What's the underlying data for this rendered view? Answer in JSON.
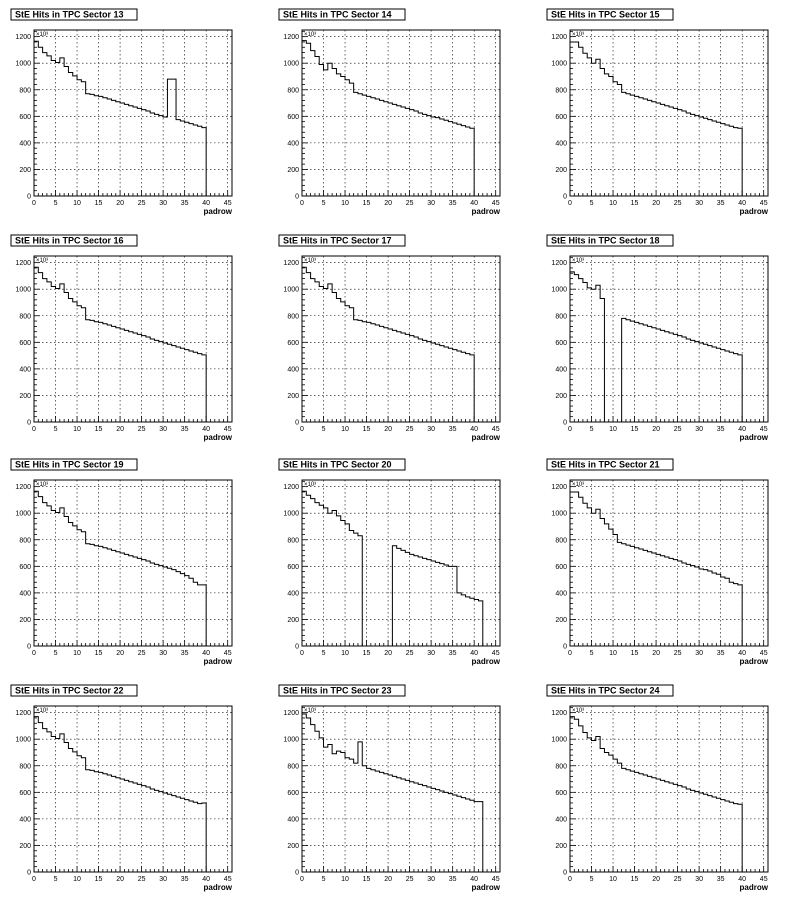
{
  "chart_data": [
    {
      "type": "histogram",
      "title": "StE Hits in TPC Sector 13",
      "xlabel": "padrow",
      "ylabel": "",
      "y_exponent": "×10³",
      "xlim": [
        0,
        46
      ],
      "ylim": [
        0,
        1250
      ],
      "x_ticks": [
        0,
        5,
        10,
        15,
        20,
        25,
        30,
        35,
        40,
        45
      ],
      "y_ticks": [
        0,
        200,
        400,
        600,
        800,
        1000,
        1200
      ],
      "grid": true,
      "values": [
        1165,
        1120,
        1080,
        1055,
        1020,
        1005,
        1040,
        975,
        930,
        905,
        875,
        860,
        770,
        765,
        755,
        750,
        740,
        730,
        720,
        710,
        700,
        690,
        680,
        670,
        660,
        650,
        640,
        625,
        615,
        605,
        595,
        880,
        880,
        575,
        565,
        555,
        545,
        535,
        525,
        515,
        0,
        0,
        0,
        0,
        0,
        0
      ]
    },
    {
      "type": "histogram",
      "title": "StE Hits in TPC Sector 14",
      "xlabel": "padrow",
      "ylabel": "",
      "y_exponent": "×10³",
      "xlim": [
        0,
        46
      ],
      "ylim": [
        0,
        1250
      ],
      "x_ticks": [
        0,
        5,
        10,
        15,
        20,
        25,
        30,
        35,
        40,
        45
      ],
      "y_ticks": [
        0,
        200,
        400,
        600,
        800,
        1000,
        1200
      ],
      "grid": true,
      "values": [
        1170,
        1150,
        1095,
        1050,
        990,
        950,
        1000,
        960,
        920,
        900,
        875,
        850,
        780,
        770,
        760,
        750,
        740,
        730,
        720,
        710,
        700,
        690,
        680,
        670,
        660,
        650,
        640,
        625,
        615,
        605,
        595,
        590,
        580,
        570,
        560,
        550,
        540,
        530,
        520,
        510,
        0,
        0,
        0,
        0,
        0,
        0
      ]
    },
    {
      "type": "histogram",
      "title": "StE Hits in TPC Sector 15",
      "xlabel": "padrow",
      "ylabel": "",
      "y_exponent": "×10³",
      "xlim": [
        0,
        46
      ],
      "ylim": [
        0,
        1250
      ],
      "x_ticks": [
        0,
        5,
        10,
        15,
        20,
        25,
        30,
        35,
        40,
        45
      ],
      "y_ticks": [
        0,
        200,
        400,
        600,
        800,
        1000,
        1200
      ],
      "grid": true,
      "values": [
        1160,
        1160,
        1120,
        1075,
        1040,
        1000,
        1030,
        960,
        920,
        900,
        860,
        840,
        780,
        770,
        760,
        750,
        740,
        730,
        720,
        710,
        700,
        690,
        680,
        670,
        660,
        650,
        640,
        625,
        615,
        605,
        595,
        585,
        575,
        565,
        555,
        545,
        535,
        525,
        515,
        510,
        0,
        0,
        0,
        0,
        0,
        0
      ]
    },
    {
      "type": "histogram",
      "title": "StE Hits in TPC Sector 16",
      "xlabel": "padrow",
      "ylabel": "",
      "y_exponent": "×10³",
      "xlim": [
        0,
        46
      ],
      "ylim": [
        0,
        1250
      ],
      "x_ticks": [
        0,
        5,
        10,
        15,
        20,
        25,
        30,
        35,
        40,
        45
      ],
      "y_ticks": [
        0,
        200,
        400,
        600,
        800,
        1000,
        1200
      ],
      "grid": true,
      "values": [
        1165,
        1125,
        1080,
        1055,
        1020,
        1005,
        1040,
        975,
        930,
        905,
        875,
        860,
        770,
        765,
        755,
        750,
        740,
        730,
        720,
        710,
        700,
        690,
        680,
        670,
        660,
        650,
        640,
        625,
        615,
        605,
        595,
        585,
        575,
        565,
        555,
        545,
        535,
        525,
        515,
        505,
        0,
        0,
        0,
        0,
        0,
        0
      ]
    },
    {
      "type": "histogram",
      "title": "StE Hits in TPC Sector 17",
      "xlabel": "padrow",
      "ylabel": "",
      "y_exponent": "×10³",
      "xlim": [
        0,
        46
      ],
      "ylim": [
        0,
        1250
      ],
      "x_ticks": [
        0,
        5,
        10,
        15,
        20,
        25,
        30,
        35,
        40,
        45
      ],
      "y_ticks": [
        0,
        200,
        400,
        600,
        800,
        1000,
        1200
      ],
      "grid": true,
      "values": [
        1165,
        1125,
        1080,
        1055,
        1020,
        1005,
        1040,
        975,
        930,
        905,
        875,
        860,
        770,
        765,
        755,
        750,
        740,
        730,
        720,
        710,
        700,
        690,
        680,
        670,
        660,
        650,
        640,
        625,
        615,
        605,
        595,
        585,
        575,
        565,
        555,
        545,
        535,
        525,
        515,
        505,
        0,
        0,
        0,
        0,
        0,
        0
      ]
    },
    {
      "type": "histogram",
      "title": "StE Hits in TPC Sector 18",
      "xlabel": "padrow",
      "ylabel": "",
      "y_exponent": "×10³",
      "xlim": [
        0,
        46
      ],
      "ylim": [
        0,
        1250
      ],
      "x_ticks": [
        0,
        5,
        10,
        15,
        20,
        25,
        30,
        35,
        40,
        45
      ],
      "y_ticks": [
        0,
        200,
        400,
        600,
        800,
        1000,
        1200
      ],
      "grid": true,
      "values": [
        1130,
        1110,
        1080,
        1050,
        1010,
        1000,
        1030,
        930,
        0,
        0,
        0,
        0,
        780,
        770,
        760,
        750,
        740,
        730,
        720,
        710,
        700,
        690,
        680,
        670,
        660,
        650,
        640,
        625,
        615,
        605,
        595,
        585,
        575,
        565,
        555,
        545,
        535,
        525,
        515,
        505,
        0,
        0,
        0,
        0,
        0,
        0
      ]
    },
    {
      "type": "histogram",
      "title": "StE Hits in TPC Sector 19",
      "xlabel": "padrow",
      "ylabel": "",
      "y_exponent": "×10³",
      "xlim": [
        0,
        46
      ],
      "ylim": [
        0,
        1250
      ],
      "x_ticks": [
        0,
        5,
        10,
        15,
        20,
        25,
        30,
        35,
        40,
        45
      ],
      "y_ticks": [
        0,
        200,
        400,
        600,
        800,
        1000,
        1200
      ],
      "grid": true,
      "values": [
        1165,
        1125,
        1080,
        1055,
        1020,
        1005,
        1040,
        975,
        930,
        905,
        875,
        860,
        770,
        765,
        755,
        750,
        740,
        730,
        720,
        710,
        700,
        690,
        680,
        670,
        660,
        650,
        640,
        625,
        615,
        605,
        595,
        585,
        575,
        560,
        545,
        530,
        510,
        480,
        460,
        460,
        0,
        0,
        0,
        0,
        0,
        0
      ]
    },
    {
      "type": "histogram",
      "title": "StE Hits in TPC Sector 20",
      "xlabel": "padrow",
      "ylabel": "",
      "y_exponent": "×10³",
      "xlim": [
        0,
        46
      ],
      "ylim": [
        0,
        1250
      ],
      "x_ticks": [
        0,
        5,
        10,
        15,
        20,
        25,
        30,
        35,
        40,
        45
      ],
      "y_ticks": [
        0,
        200,
        400,
        600,
        800,
        1000,
        1200
      ],
      "grid": true,
      "values": [
        1165,
        1135,
        1110,
        1080,
        1060,
        1040,
        1000,
        1020,
        980,
        945,
        920,
        870,
        850,
        830,
        0,
        0,
        0,
        0,
        0,
        0,
        0,
        755,
        735,
        720,
        705,
        690,
        680,
        670,
        660,
        650,
        640,
        630,
        620,
        610,
        600,
        600,
        400,
        385,
        370,
        360,
        350,
        340,
        0,
        0,
        0,
        0
      ]
    },
    {
      "type": "histogram",
      "title": "StE Hits in TPC Sector 21",
      "xlabel": "padrow",
      "ylabel": "",
      "y_exponent": "×10³",
      "xlim": [
        0,
        46
      ],
      "ylim": [
        0,
        1250
      ],
      "x_ticks": [
        0,
        5,
        10,
        15,
        20,
        25,
        30,
        35,
        40,
        45
      ],
      "y_ticks": [
        0,
        200,
        400,
        600,
        800,
        1000,
        1200
      ],
      "grid": true,
      "values": [
        1160,
        1160,
        1120,
        1075,
        1040,
        1000,
        1030,
        960,
        920,
        880,
        840,
        780,
        770,
        760,
        750,
        740,
        730,
        720,
        710,
        700,
        690,
        680,
        670,
        660,
        650,
        640,
        625,
        615,
        605,
        595,
        580,
        575,
        565,
        550,
        540,
        520,
        510,
        480,
        470,
        460,
        0,
        0,
        0,
        0,
        0,
        0
      ]
    },
    {
      "type": "histogram",
      "title": "StE Hits in TPC Sector 22",
      "xlabel": "padrow",
      "ylabel": "",
      "y_exponent": "×10³",
      "xlim": [
        0,
        46
      ],
      "ylim": [
        0,
        1250
      ],
      "x_ticks": [
        0,
        5,
        10,
        15,
        20,
        25,
        30,
        35,
        40,
        45
      ],
      "y_ticks": [
        0,
        200,
        400,
        600,
        800,
        1000,
        1200
      ],
      "grid": true,
      "values": [
        1170,
        1125,
        1080,
        1055,
        1020,
        1005,
        1040,
        975,
        930,
        905,
        875,
        860,
        770,
        765,
        755,
        750,
        740,
        730,
        720,
        710,
        700,
        690,
        680,
        670,
        660,
        650,
        640,
        625,
        615,
        605,
        595,
        585,
        575,
        565,
        555,
        545,
        535,
        525,
        515,
        520,
        0,
        0,
        0,
        0,
        0,
        0
      ]
    },
    {
      "type": "histogram",
      "title": "StE Hits in TPC Sector 23",
      "xlabel": "padrow",
      "ylabel": "",
      "y_exponent": "×10³",
      "xlim": [
        0,
        46
      ],
      "ylim": [
        0,
        1250
      ],
      "x_ticks": [
        0,
        5,
        10,
        15,
        20,
        25,
        30,
        35,
        40,
        45
      ],
      "y_ticks": [
        0,
        200,
        400,
        600,
        800,
        1000,
        1200
      ],
      "grid": true,
      "values": [
        1190,
        1160,
        1110,
        1060,
        1010,
        940,
        960,
        890,
        910,
        900,
        860,
        850,
        820,
        980,
        800,
        780,
        770,
        760,
        750,
        740,
        730,
        720,
        710,
        700,
        690,
        680,
        670,
        660,
        650,
        640,
        630,
        620,
        610,
        600,
        590,
        580,
        570,
        560,
        550,
        540,
        530,
        530,
        0,
        0,
        0,
        0
      ]
    },
    {
      "type": "histogram",
      "title": "StE Hits in TPC Sector 24",
      "xlabel": "padrow",
      "ylabel": "",
      "y_exponent": "×10³",
      "xlim": [
        0,
        46
      ],
      "ylim": [
        0,
        1250
      ],
      "x_ticks": [
        0,
        5,
        10,
        15,
        20,
        25,
        30,
        35,
        40,
        45
      ],
      "y_ticks": [
        0,
        200,
        400,
        600,
        800,
        1000,
        1200
      ],
      "grid": true,
      "values": [
        1170,
        1150,
        1100,
        1050,
        1010,
        990,
        1020,
        930,
        900,
        880,
        850,
        820,
        780,
        770,
        760,
        750,
        740,
        730,
        720,
        710,
        700,
        690,
        680,
        670,
        660,
        650,
        640,
        625,
        615,
        605,
        595,
        585,
        575,
        565,
        555,
        545,
        535,
        525,
        515,
        510,
        0,
        0,
        0,
        0,
        0,
        0
      ]
    }
  ]
}
